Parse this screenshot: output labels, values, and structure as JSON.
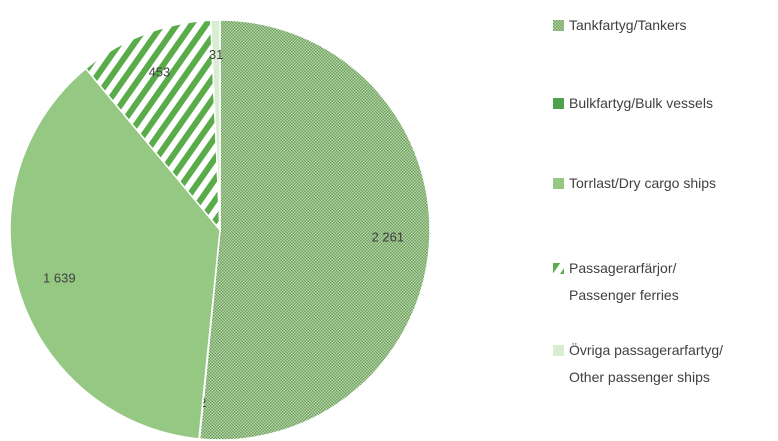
{
  "chart_data": {
    "type": "pie",
    "categories": [
      "Tankfartyg/Tankers",
      "Bulkfartyg/Bulk vessels",
      "Torrlast/Dry cargo ships",
      "Passagerarfärjor/\nPassenger ferries",
      "Övriga passagerarfartyg/\nOther passenger ships"
    ],
    "values": [
      2261,
      2,
      1639,
      453,
      31
    ],
    "value_labels": [
      "2 261",
      "2",
      "1 639",
      "453",
      "31"
    ],
    "colors": [
      "#8cbd7a",
      "#4ea24e",
      "#95c983",
      "#5aab4a",
      "#d9edd1"
    ],
    "patterns": [
      "dots",
      null,
      null,
      "stripes",
      null
    ]
  }
}
